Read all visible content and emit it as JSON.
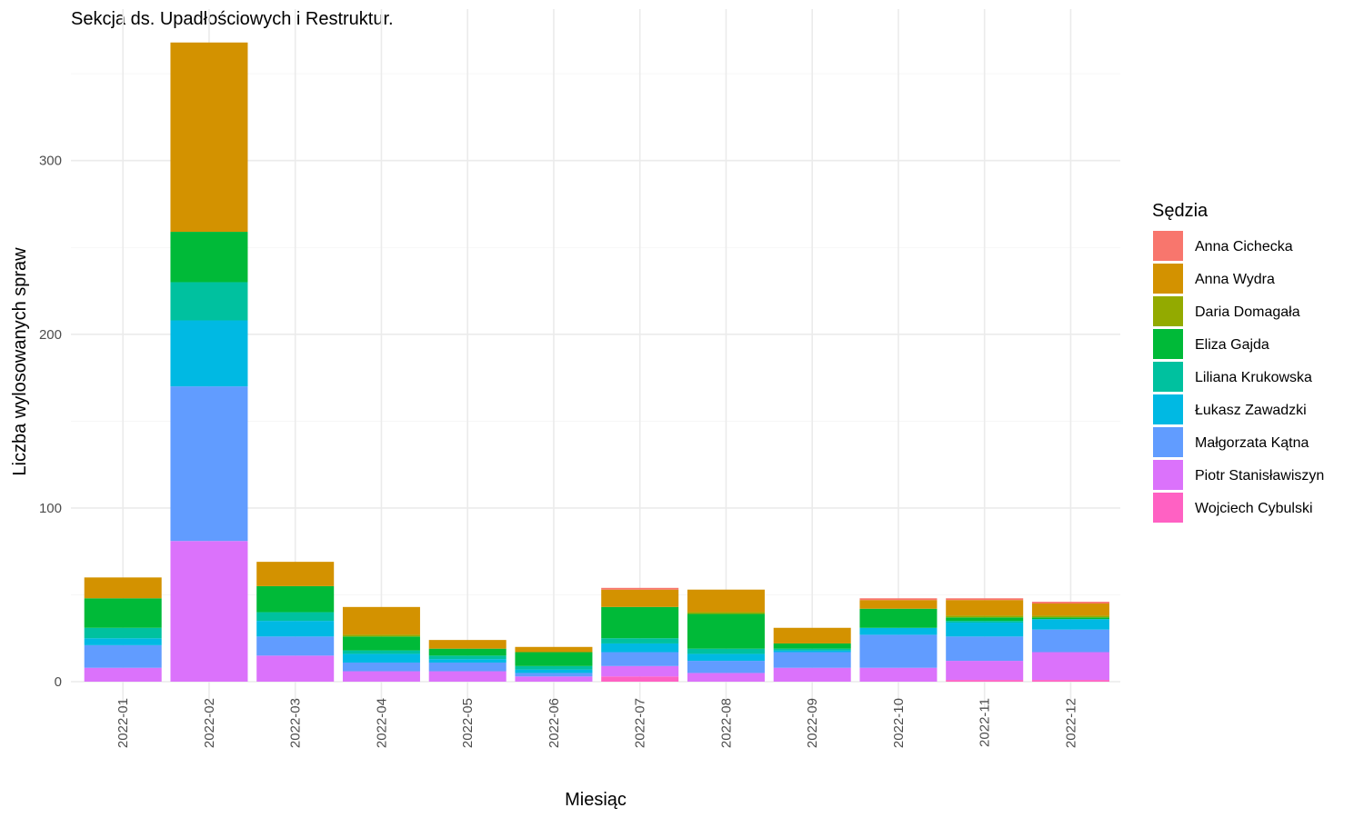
{
  "chart_data": {
    "type": "bar",
    "stacked": true,
    "title": "Sekcja ds. Upadłościowych i Restruktur.",
    "xlabel": "Miesiąc",
    "ylabel": "Liczba wylosowanych spraw",
    "ylim": [
      0,
      385
    ],
    "yticks": [
      0,
      100,
      200,
      300
    ],
    "grid": true,
    "legend_position": "right",
    "legend_title": "Sędzia",
    "categories": [
      "2022-01",
      "2022-02",
      "2022-03",
      "2022-04",
      "2022-05",
      "2022-06",
      "2022-07",
      "2022-08",
      "2022-09",
      "2022-10",
      "2022-11",
      "2022-12"
    ],
    "series": [
      {
        "name": "Anna Cichecka",
        "color": "#F8766D",
        "values": [
          0,
          0,
          0,
          0,
          0,
          0,
          1,
          0,
          0,
          1,
          1,
          1
        ]
      },
      {
        "name": "Anna Wydra",
        "color": "#D39200",
        "values": [
          12,
          109,
          14,
          16,
          5,
          3,
          10,
          13,
          9,
          5,
          9,
          7
        ]
      },
      {
        "name": "Daria Domagała",
        "color": "#93AA00",
        "values": [
          0,
          0,
          0,
          1,
          0,
          0,
          0,
          1,
          0,
          0,
          1,
          1
        ]
      },
      {
        "name": "Eliza Gajda",
        "color": "#00BA38",
        "values": [
          17,
          29,
          15,
          8,
          4,
          8,
          18,
          20,
          3,
          11,
          2,
          1
        ]
      },
      {
        "name": "Liliana Krukowska",
        "color": "#00C19F",
        "values": [
          6,
          22,
          5,
          2,
          2,
          2,
          3,
          3,
          1,
          0,
          1,
          0
        ]
      },
      {
        "name": "Łukasz Zawadzki",
        "color": "#00B9E3",
        "values": [
          4,
          38,
          9,
          5,
          2,
          2,
          5,
          4,
          1,
          4,
          8,
          6
        ]
      },
      {
        "name": "Małgorzata Kątna",
        "color": "#619CFF",
        "values": [
          13,
          89,
          11,
          5,
          5,
          2,
          8,
          7,
          9,
          19,
          14,
          13
        ]
      },
      {
        "name": "Piotr Stanisławiszyn",
        "color": "#DB72FB",
        "values": [
          8,
          81,
          15,
          6,
          6,
          3,
          6,
          5,
          8,
          8,
          11,
          16
        ]
      },
      {
        "name": "Wojciech Cybulski",
        "color": "#FF61C3",
        "values": [
          0,
          0,
          0,
          0,
          0,
          0,
          3,
          0,
          0,
          0,
          1,
          1
        ]
      }
    ]
  }
}
